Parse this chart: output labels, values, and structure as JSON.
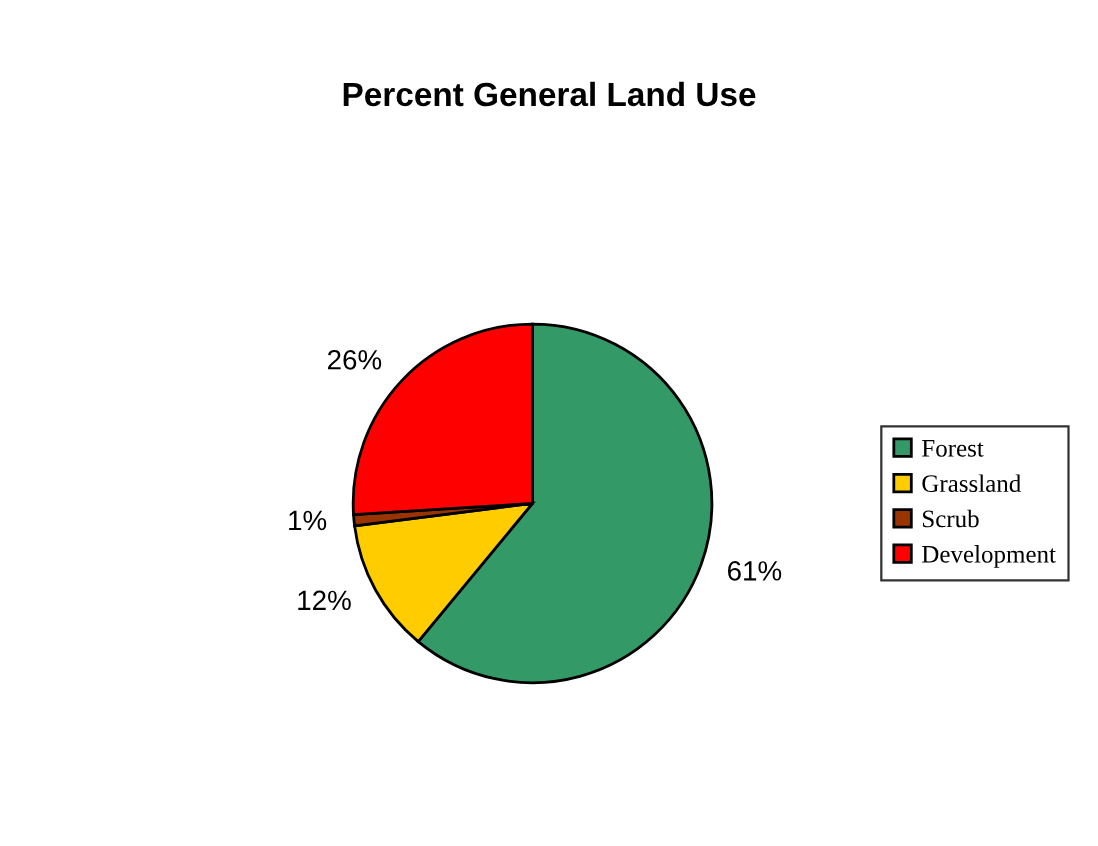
{
  "chart_data": {
    "type": "pie",
    "title": "Percent General Land Use",
    "categories": [
      "Forest",
      "Grassland",
      "Scrub",
      "Development"
    ],
    "values": [
      61,
      12,
      1,
      26
    ],
    "colors": [
      "#339966",
      "#ffcc00",
      "#993300",
      "#ff0000"
    ],
    "value_labels": [
      "61%",
      "12%",
      "1%",
      "26%"
    ],
    "legend": "right"
  }
}
